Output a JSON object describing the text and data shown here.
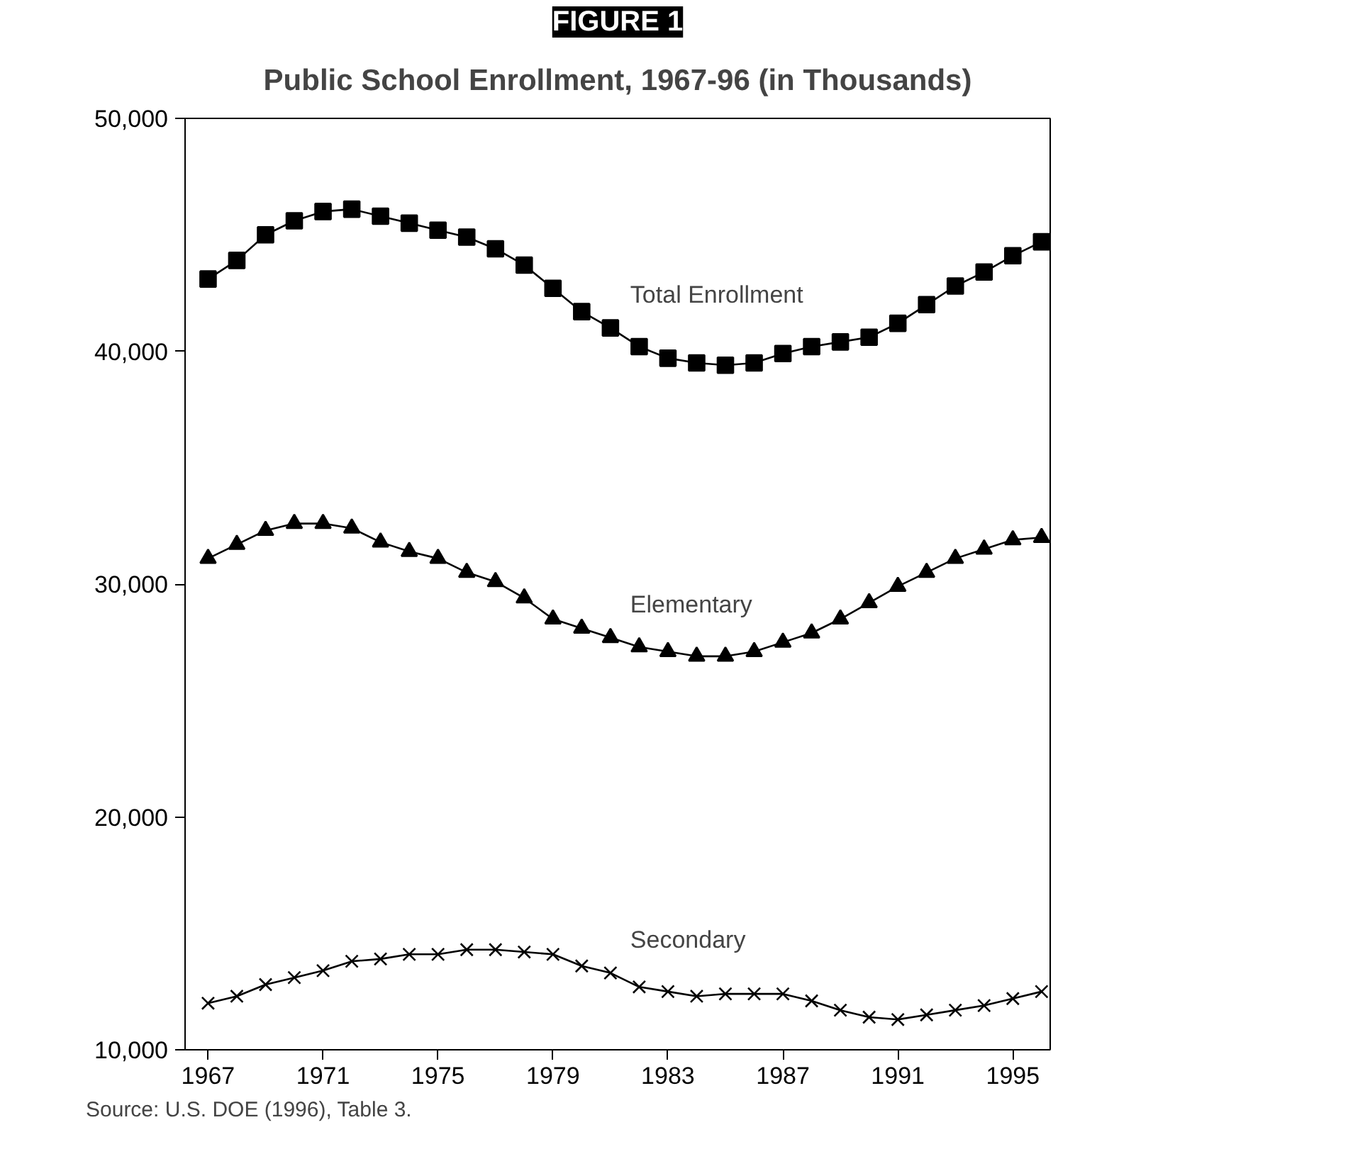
{
  "chart_data": {
    "type": "line",
    "title": "FIGURE 1",
    "subtitle": "Public School Enrollment, 1967-96 (in Thousands)",
    "x": [
      1967,
      1968,
      1969,
      1970,
      1971,
      1972,
      1973,
      1974,
      1975,
      1976,
      1977,
      1978,
      1979,
      1980,
      1981,
      1982,
      1983,
      1984,
      1985,
      1986,
      1987,
      1988,
      1989,
      1990,
      1991,
      1992,
      1993,
      1994,
      1995,
      1996
    ],
    "series": [
      {
        "name": "Total Enrollment",
        "color": "#000000",
        "marker": "square",
        "values": [
          43100,
          43900,
          45000,
          45600,
          46000,
          46100,
          45800,
          45500,
          45200,
          44900,
          44400,
          43700,
          42700,
          41700,
          41000,
          40200,
          39700,
          39500,
          39400,
          39500,
          39900,
          40200,
          40400,
          40600,
          41200,
          42000,
          42800,
          43400,
          44100,
          44700
        ]
      },
      {
        "name": "Elementary",
        "color": "#000000",
        "marker": "triangle",
        "values": [
          31100,
          31700,
          32300,
          32600,
          32600,
          32400,
          31800,
          31400,
          31100,
          30500,
          30100,
          29400,
          28500,
          28100,
          27700,
          27300,
          27100,
          26900,
          26900,
          27100,
          27500,
          27900,
          28500,
          29200,
          29900,
          30500,
          31100,
          31500,
          31900,
          32000
        ]
      },
      {
        "name": "Secondary",
        "color": "#000000",
        "marker": "cross",
        "values": [
          12000,
          12300,
          12800,
          13100,
          13400,
          13800,
          13900,
          14100,
          14100,
          14300,
          14300,
          14200,
          14100,
          13600,
          13300,
          12700,
          12500,
          12300,
          12400,
          12400,
          12400,
          12100,
          11700,
          11400,
          11300,
          11500,
          11700,
          11900,
          12200,
          12500
        ]
      }
    ],
    "xlim": [
      1966.2,
      1996.3
    ],
    "xticks": [
      1967,
      1971,
      1975,
      1979,
      1983,
      1987,
      1991,
      1995
    ],
    "ylim": [
      10000,
      50000
    ],
    "yticks": [
      {
        "value": 10000,
        "label": "10,000"
      },
      {
        "value": 20000,
        "label": "20,000"
      },
      {
        "value": 30000,
        "label": "30,000"
      },
      {
        "value": 40000,
        "label": "40,000"
      },
      {
        "value": 50000,
        "label": "50,000"
      }
    ],
    "grid": false,
    "legend": false,
    "line_style": "solid",
    "annotations": [
      "Source: U.S. DOE (1996), Table 3."
    ]
  }
}
